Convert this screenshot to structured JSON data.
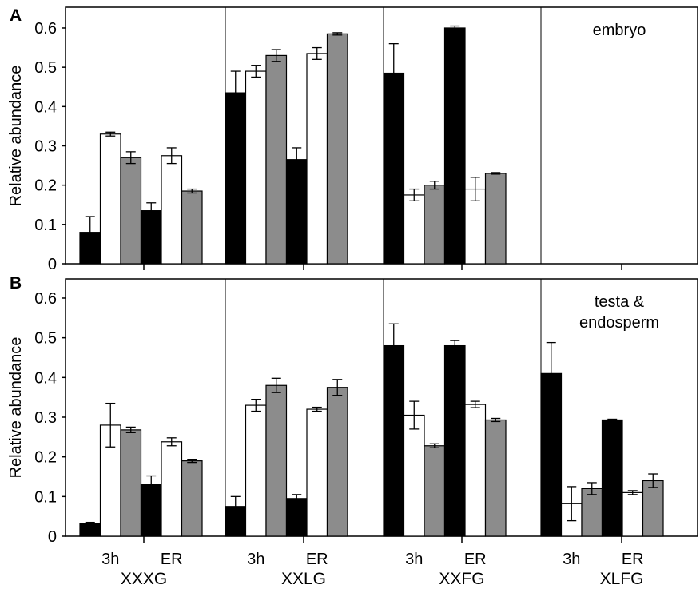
{
  "chart_data": [
    {
      "type": "bar",
      "panel_label": "A",
      "annotation": "embryo",
      "ylabel": "Relative abundance",
      "ylim": [
        0,
        0.65
      ],
      "yticks": [
        0,
        0.1,
        0.2,
        0.3,
        0.4,
        0.5,
        0.6
      ],
      "ytick_labels": [
        "0",
        "0.1",
        "0.2",
        "0.3",
        "0.4",
        "0.5",
        "0.6"
      ],
      "colors": [
        "#000000",
        "#ffffff",
        "#8c8c8c"
      ],
      "groups": [
        {
          "name": "XXXG",
          "bars": [
            {
              "value": 0.08,
              "error": 0.04
            },
            {
              "value": 0.33,
              "error": 0.005
            },
            {
              "value": 0.27,
              "error": 0.015
            },
            {
              "value": 0.135,
              "error": 0.02
            },
            {
              "value": 0.275,
              "error": 0.02
            },
            {
              "value": 0.185,
              "error": 0.005
            }
          ]
        },
        {
          "name": "XXLG",
          "bars": [
            {
              "value": 0.435,
              "error": 0.055
            },
            {
              "value": 0.49,
              "error": 0.015
            },
            {
              "value": 0.53,
              "error": 0.015
            },
            {
              "value": 0.265,
              "error": 0.03
            },
            {
              "value": 0.535,
              "error": 0.015
            },
            {
              "value": 0.585,
              "error": 0.003
            }
          ]
        },
        {
          "name": "XXFG",
          "bars": [
            {
              "value": 0.485,
              "error": 0.075
            },
            {
              "value": 0.175,
              "error": 0.015
            },
            {
              "value": 0.2,
              "error": 0.01
            },
            {
              "value": 0.6,
              "error": 0.005
            },
            {
              "value": 0.19,
              "error": 0.03
            },
            {
              "value": 0.23,
              "error": 0.002
            }
          ]
        },
        {
          "name": "XLFG",
          "bars": []
        }
      ]
    },
    {
      "type": "bar",
      "panel_label": "B",
      "annotation_lines": [
        "testa &",
        "endosperm"
      ],
      "ylabel": "Relative abundance",
      "ylim": [
        0,
        0.65
      ],
      "yticks": [
        0,
        0.1,
        0.2,
        0.3,
        0.4,
        0.5,
        0.6
      ],
      "ytick_labels": [
        "0",
        "0.1",
        "0.2",
        "0.3",
        "0.4",
        "0.5",
        "0.6"
      ],
      "colors": [
        "#000000",
        "#ffffff",
        "#8c8c8c"
      ],
      "sublabels": [
        "3h",
        "ER"
      ],
      "groups": [
        {
          "name": "XXXG",
          "bars": [
            {
              "value": 0.033,
              "error": 0.002
            },
            {
              "value": 0.28,
              "error": 0.055
            },
            {
              "value": 0.268,
              "error": 0.007
            },
            {
              "value": 0.13,
              "error": 0.022
            },
            {
              "value": 0.238,
              "error": 0.01
            },
            {
              "value": 0.19,
              "error": 0.004
            }
          ]
        },
        {
          "name": "XXLG",
          "bars": [
            {
              "value": 0.075,
              "error": 0.025
            },
            {
              "value": 0.33,
              "error": 0.015
            },
            {
              "value": 0.38,
              "error": 0.018
            },
            {
              "value": 0.095,
              "error": 0.01
            },
            {
              "value": 0.32,
              "error": 0.005
            },
            {
              "value": 0.375,
              "error": 0.02
            }
          ]
        },
        {
          "name": "XXFG",
          "bars": [
            {
              "value": 0.48,
              "error": 0.055
            },
            {
              "value": 0.305,
              "error": 0.035
            },
            {
              "value": 0.228,
              "error": 0.005
            },
            {
              "value": 0.48,
              "error": 0.013
            },
            {
              "value": 0.332,
              "error": 0.008
            },
            {
              "value": 0.293,
              "error": 0.004
            }
          ]
        },
        {
          "name": "XLFG",
          "bars": [
            {
              "value": 0.41,
              "error": 0.078
            },
            {
              "value": 0.082,
              "error": 0.043
            },
            {
              "value": 0.12,
              "error": 0.015
            },
            {
              "value": 0.293,
              "error": 0.002
            },
            {
              "value": 0.11,
              "error": 0.005
            },
            {
              "value": 0.14,
              "error": 0.017
            }
          ]
        }
      ]
    }
  ]
}
